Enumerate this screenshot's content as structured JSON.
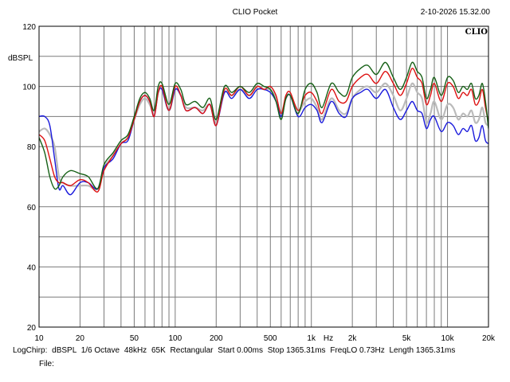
{
  "header": {
    "title": "CLIO Pocket",
    "timestamp": "2-10-2026 15.32.00",
    "logo": "CLIO"
  },
  "footer": {
    "info": [
      "LogChirp:",
      "dBSPL",
      "1/6 Octave",
      "48kHz",
      "65K",
      "Rectangular",
      "Start 0.00ms",
      "Stop 1365.31ms",
      "FreqLO 0.73Hz",
      "Length 1365.31ms"
    ],
    "file_label": "File:"
  },
  "chart_data": {
    "type": "line",
    "title": "",
    "xlabel": "Hz",
    "ylabel": "dBSPL",
    "xscale": "log",
    "xlim": [
      10,
      20000
    ],
    "ylim": [
      20,
      120
    ],
    "grid": true,
    "xticks": [
      {
        "value": 10,
        "label": "10"
      },
      {
        "value": 20,
        "label": "20"
      },
      {
        "value": 50,
        "label": "50"
      },
      {
        "value": 100,
        "label": "100"
      },
      {
        "value": 200,
        "label": "200"
      },
      {
        "value": 500,
        "label": "500"
      },
      {
        "value": 1000,
        "label": "1k"
      },
      {
        "value": 2000,
        "label": "2k"
      },
      {
        "value": 5000,
        "label": "5k"
      },
      {
        "value": 10000,
        "label": "10k"
      },
      {
        "value": 20000,
        "label": "20k"
      }
    ],
    "yticks": [
      20,
      40,
      60,
      80,
      100,
      120
    ],
    "series": [
      {
        "color": "#bbbbbb",
        "x": [
          10,
          11,
          12,
          13,
          14,
          15,
          17,
          20,
          23,
          27,
          30,
          35,
          40,
          45,
          50,
          55,
          60,
          65,
          70,
          75,
          80,
          90,
          100,
          110,
          120,
          140,
          160,
          180,
          200,
          230,
          260,
          300,
          350,
          400,
          450,
          500,
          550,
          600,
          650,
          700,
          800,
          900,
          1000,
          1100,
          1200,
          1400,
          1600,
          1800,
          2000,
          2300,
          2600,
          3000,
          3500,
          4000,
          4500,
          5000,
          5500,
          6000,
          6500,
          7000,
          7500,
          8000,
          9000,
          10000,
          11000,
          12000,
          13000,
          14000,
          15000,
          16000,
          17000,
          18000,
          19000,
          20000
        ],
        "y": [
          85,
          86,
          84,
          80,
          70,
          68,
          67,
          67,
          67,
          66,
          73,
          77,
          81,
          83,
          89,
          94,
          96,
          94,
          91,
          98,
          99,
          92,
          99,
          97,
          93,
          93,
          92,
          94,
          88,
          98,
          97,
          99,
          97,
          100,
          99,
          99,
          96,
          91,
          96,
          97,
          92,
          95,
          96,
          93,
          89,
          96,
          92,
          91,
          96,
          99,
          100,
          98,
          101,
          97,
          92,
          96,
          101,
          98,
          96,
          88,
          91,
          95,
          89,
          94,
          93,
          89,
          91,
          90,
          92,
          88,
          89,
          93,
          88,
          87
        ]
      },
      {
        "color": "#1a1adc",
        "x": [
          10,
          11,
          12,
          13,
          14,
          15,
          17,
          20,
          23,
          27,
          30,
          35,
          40,
          45,
          50,
          55,
          60,
          65,
          70,
          75,
          80,
          90,
          100,
          110,
          120,
          140,
          160,
          180,
          200,
          230,
          260,
          300,
          350,
          400,
          450,
          500,
          550,
          600,
          650,
          700,
          800,
          900,
          1000,
          1100,
          1200,
          1400,
          1600,
          1800,
          2000,
          2300,
          2600,
          3000,
          3500,
          4000,
          4500,
          5000,
          5500,
          6000,
          6500,
          7000,
          7500,
          8000,
          9000,
          10000,
          11000,
          12000,
          13000,
          14000,
          15000,
          16000,
          17000,
          18000,
          19000,
          20000
        ],
        "y": [
          90,
          90,
          87,
          76,
          66,
          67,
          64,
          68,
          68,
          66,
          73,
          76,
          81,
          82,
          89,
          95,
          97,
          95,
          90,
          98,
          99,
          92,
          99,
          97,
          92,
          93,
          91,
          94,
          87,
          98,
          96,
          99,
          96,
          99,
          99,
          98,
          95,
          90,
          96,
          97,
          90,
          93,
          94,
          92,
          88,
          95,
          91,
          90,
          96,
          98,
          99,
          96,
          99,
          93,
          89,
          92,
          95,
          92,
          91,
          86,
          89,
          90,
          85,
          88,
          87,
          84,
          86,
          85,
          87,
          82,
          83,
          87,
          82,
          81
        ]
      },
      {
        "color": "#dd1111",
        "x": [
          10,
          11,
          12,
          13,
          14,
          15,
          17,
          20,
          23,
          27,
          30,
          35,
          40,
          45,
          50,
          55,
          60,
          65,
          70,
          75,
          80,
          90,
          100,
          110,
          120,
          140,
          160,
          180,
          200,
          230,
          260,
          300,
          350,
          400,
          450,
          500,
          550,
          600,
          650,
          700,
          800,
          900,
          1000,
          1100,
          1200,
          1400,
          1600,
          1800,
          2000,
          2300,
          2600,
          3000,
          3500,
          4000,
          4500,
          5000,
          5500,
          6000,
          6500,
          7000,
          7500,
          8000,
          9000,
          10000,
          11000,
          12000,
          13000,
          14000,
          15000,
          16000,
          17000,
          18000,
          19000,
          20000
        ],
        "y": [
          84,
          82,
          76,
          70,
          68,
          68,
          67,
          69,
          68,
          65,
          72,
          77,
          81,
          83,
          89,
          95,
          97,
          95,
          90,
          98,
          100,
          92,
          100,
          97,
          92,
          93,
          91,
          94,
          87,
          99,
          97,
          100,
          97,
          100,
          99,
          100,
          97,
          91,
          97,
          98,
          92,
          97,
          98,
          95,
          91,
          99,
          95,
          95,
          100,
          103,
          104,
          101,
          105,
          101,
          97,
          101,
          106,
          103,
          101,
          94,
          97,
          101,
          95,
          101,
          100,
          96,
          98,
          97,
          99,
          94,
          95,
          99,
          93,
          88
        ]
      },
      {
        "color": "#166016",
        "x": [
          10,
          11,
          12,
          13,
          14,
          15,
          17,
          20,
          23,
          27,
          30,
          35,
          40,
          45,
          50,
          55,
          60,
          65,
          70,
          75,
          80,
          90,
          100,
          110,
          120,
          140,
          160,
          180,
          200,
          230,
          260,
          300,
          350,
          400,
          450,
          500,
          550,
          600,
          650,
          700,
          800,
          900,
          1000,
          1100,
          1200,
          1400,
          1600,
          1800,
          2000,
          2300,
          2600,
          3000,
          3500,
          4000,
          4500,
          5000,
          5500,
          6000,
          6500,
          7000,
          7500,
          8000,
          9000,
          10000,
          11000,
          12000,
          13000,
          14000,
          15000,
          16000,
          17000,
          18000,
          19000,
          20000
        ],
        "y": [
          83,
          78,
          70,
          66,
          67,
          70,
          72,
          71,
          70,
          66,
          74,
          78,
          82,
          84,
          90,
          96,
          98,
          96,
          92,
          100,
          101,
          94,
          101,
          99,
          94,
          95,
          93,
          96,
          89,
          100,
          98,
          100,
          98,
          101,
          100,
          99,
          95,
          89,
          96,
          97,
          91,
          99,
          101,
          98,
          93,
          101,
          98,
          97,
          103,
          106,
          107,
          104,
          108,
          103,
          99,
          103,
          108,
          105,
          103,
          96,
          99,
          103,
          97,
          103,
          102,
          98,
          100,
          99,
          101,
          96,
          97,
          101,
          95,
          86
        ]
      }
    ]
  }
}
